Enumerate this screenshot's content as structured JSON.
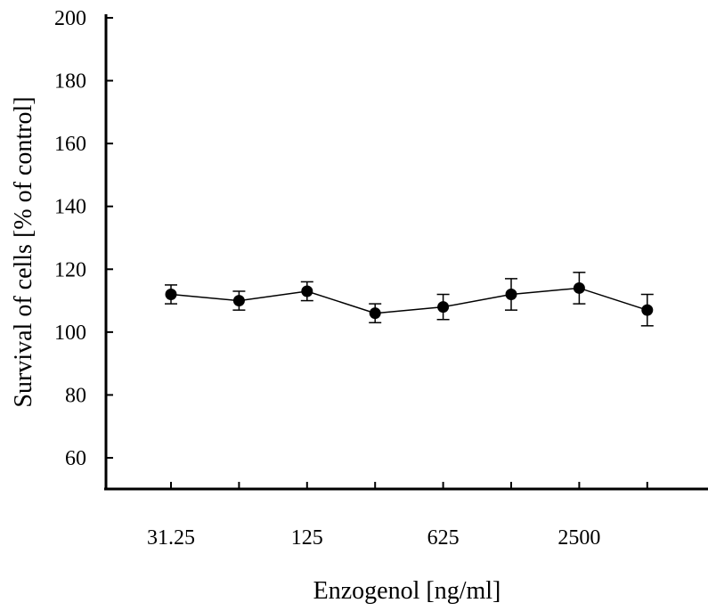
{
  "chart_data": {
    "type": "line",
    "title": "",
    "xlabel": "Enzogenol [ng/ml]",
    "ylabel": "Survival of cells [% of control]",
    "ylim": [
      50,
      200
    ],
    "yticks": [
      60,
      80,
      100,
      120,
      140,
      160,
      180,
      200
    ],
    "x_labeled_ticks": [
      "31.25",
      "125",
      "625",
      "2500"
    ],
    "grid": false,
    "legend": "none",
    "series": [
      {
        "values": [
          112,
          110,
          113,
          106,
          108,
          112,
          114,
          107
        ],
        "errors": [
          3,
          3,
          3,
          3,
          4,
          5,
          5,
          5
        ]
      }
    ],
    "colors": {
      "line": "#000000",
      "marker": "#000000"
    }
  }
}
